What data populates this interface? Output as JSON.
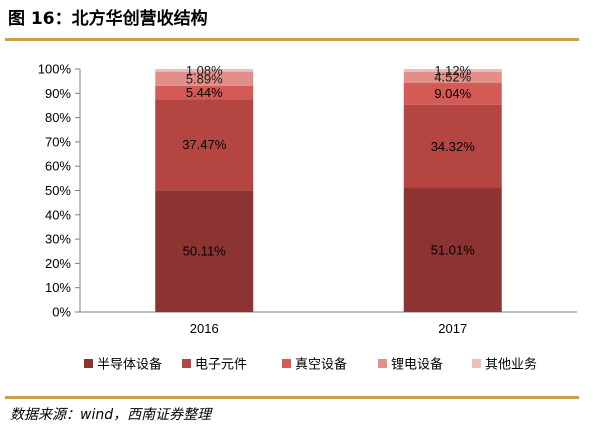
{
  "header": {
    "title": "图 16：北方华创营收结构"
  },
  "footer": {
    "source": "数据来源：wind，西南证券整理"
  },
  "colors": {
    "accent_rule": "#c9a04b",
    "series": [
      "#8b3431",
      "#b54541",
      "#d45a55",
      "#e38e89",
      "#ebbdbb"
    ]
  },
  "chart_data": {
    "type": "bar",
    "stacked": true,
    "categories": [
      "2016",
      "2017"
    ],
    "series": [
      {
        "name": "半导体设备",
        "values": [
          50.11,
          51.01
        ]
      },
      {
        "name": "电子元件",
        "values": [
          37.47,
          34.32
        ]
      },
      {
        "name": "真空设备",
        "values": [
          5.44,
          9.04
        ]
      },
      {
        "name": "锂电设备",
        "values": [
          5.89,
          4.52
        ]
      },
      {
        "name": "其他业务",
        "values": [
          1.08,
          1.12
        ]
      }
    ],
    "ylim": [
      0,
      100
    ],
    "yticks": [
      "0%",
      "10%",
      "20%",
      "30%",
      "40%",
      "50%",
      "60%",
      "70%",
      "80%",
      "90%",
      "100%"
    ],
    "value_suffix": "%",
    "legend_position": "bottom",
    "grid": false
  }
}
